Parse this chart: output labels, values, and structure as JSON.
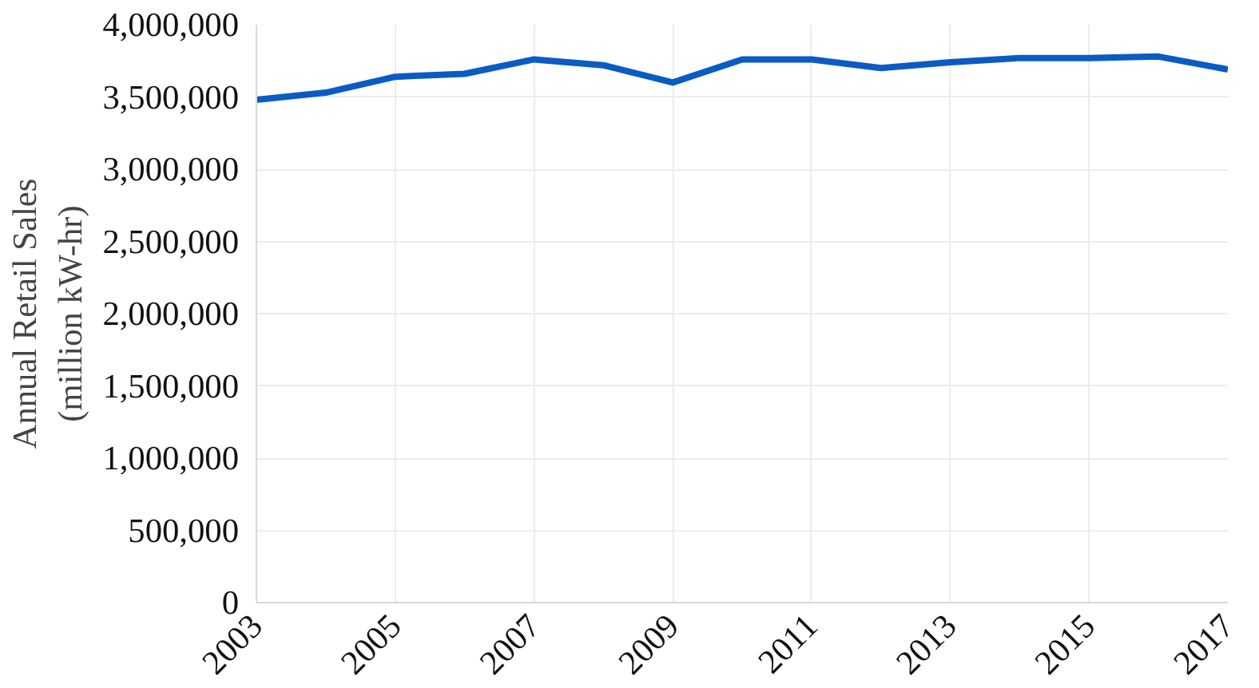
{
  "chart_data": {
    "type": "line",
    "ylabel": "Annual Retail Sales\n(million kW-hr)",
    "x": [
      2003,
      2004,
      2005,
      2006,
      2007,
      2008,
      2009,
      2010,
      2011,
      2012,
      2013,
      2014,
      2015,
      2016,
      2017
    ],
    "series": [
      {
        "color": "#0a5cc4",
        "values": [
          3480000,
          3530000,
          3640000,
          3660000,
          3760000,
          3720000,
          3600000,
          3760000,
          3760000,
          3700000,
          3740000,
          3770000,
          3770000,
          3780000,
          3690000
        ]
      }
    ],
    "xlim": [
      2003,
      2017
    ],
    "xticks": [
      2003,
      2005,
      2007,
      2009,
      2011,
      2013,
      2015,
      2017
    ],
    "ylim": [
      0,
      4000000
    ],
    "yticks": [
      {
        "value": 0,
        "label": "0"
      },
      {
        "value": 500000,
        "label": "500,000"
      },
      {
        "value": 1000000,
        "label": "1,000,000"
      },
      {
        "value": 1500000,
        "label": "1,500,000"
      },
      {
        "value": 2000000,
        "label": "2,000,000"
      },
      {
        "value": 2500000,
        "label": "2,500,000"
      },
      {
        "value": 3000000,
        "label": "3,000,000"
      },
      {
        "value": 3500000,
        "label": "3,500,000"
      },
      {
        "value": 4000000,
        "label": "4,000,000"
      }
    ],
    "grid": true,
    "marker": "none",
    "line_style": "solid"
  }
}
